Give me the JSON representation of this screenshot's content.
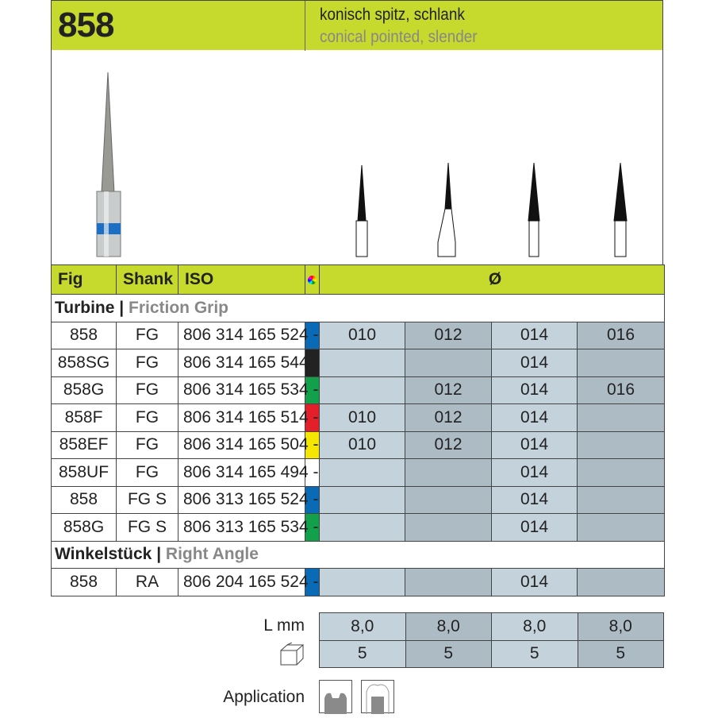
{
  "header": {
    "number": "858",
    "title_de": "konisch spitz, schlank",
    "title_en": "conical pointed, slender"
  },
  "columns": {
    "fig": "Fig",
    "shank": "Shank",
    "iso": "ISO",
    "color_icon": "color-wheel-icon",
    "diameter": "Ø"
  },
  "sections": [
    {
      "title": "Turbine",
      "subtitle": "Friction Grip",
      "rows": [
        {
          "fig": "858",
          "shank": "FG",
          "iso": "806 314 165 524 -",
          "color": "#0a6ab6",
          "sizes": [
            "010",
            "012",
            "014",
            "016"
          ]
        },
        {
          "fig": "858SG",
          "shank": "FG",
          "iso": "806 314 165 544 -",
          "color": "#222222",
          "sizes": [
            "",
            "",
            "014",
            ""
          ]
        },
        {
          "fig": "858G",
          "shank": "FG",
          "iso": "806 314 165 534 -",
          "color": "#12a04a",
          "sizes": [
            "",
            "012",
            "014",
            "016"
          ]
        },
        {
          "fig": "858F",
          "shank": "FG",
          "iso": "806 314 165 514 -",
          "color": "#e3202a",
          "sizes": [
            "010",
            "012",
            "014",
            ""
          ]
        },
        {
          "fig": "858EF",
          "shank": "FG",
          "iso": "806 314 165 504 -",
          "color": "#f5e600",
          "sizes": [
            "010",
            "012",
            "014",
            ""
          ]
        },
        {
          "fig": "858UF",
          "shank": "FG",
          "iso": "806 314 165 494 -",
          "color": "#ffffff",
          "sizes": [
            "",
            "",
            "014",
            ""
          ]
        },
        {
          "fig": "858",
          "shank": "FG S",
          "iso": "806 313 165 524 -",
          "color": "#0a6ab6",
          "sizes": [
            "",
            "",
            "014",
            ""
          ]
        },
        {
          "fig": "858G",
          "shank": "FG S",
          "iso": "806 313 165 534 -",
          "color": "#12a04a",
          "sizes": [
            "",
            "",
            "014",
            ""
          ]
        }
      ]
    },
    {
      "title": "Winkelstück",
      "subtitle": "Right Angle",
      "rows": [
        {
          "fig": "858",
          "shank": "RA",
          "iso": "806 204 165 524 -",
          "color": "#0a6ab6",
          "sizes": [
            "",
            "",
            "014",
            ""
          ]
        }
      ]
    }
  ],
  "length": {
    "label": "L mm",
    "values": [
      "8,0",
      "8,0",
      "8,0",
      "8,0"
    ]
  },
  "pack": {
    "icon": "box-icon",
    "values": [
      "5",
      "5",
      "5",
      "5"
    ]
  },
  "application": {
    "label": "Application"
  }
}
